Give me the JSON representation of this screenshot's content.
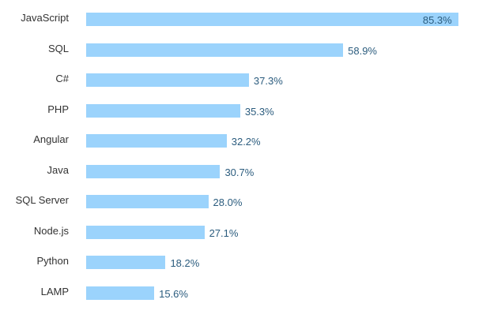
{
  "chart_data": {
    "type": "bar",
    "orientation": "horizontal",
    "title": "",
    "xlabel": "",
    "ylabel": "",
    "xlim": [
      0,
      100
    ],
    "grid": false,
    "categories": [
      "JavaScript",
      "SQL",
      "C#",
      "PHP",
      "Angular",
      "Java",
      "SQL Server",
      "Node.js",
      "Python",
      "LAMP"
    ],
    "values": [
      85.3,
      58.9,
      37.3,
      35.3,
      32.2,
      30.7,
      28.0,
      27.1,
      18.2,
      15.6
    ],
    "labels": [
      "85.3%",
      "58.9%",
      "37.3%",
      "35.3%",
      "32.2%",
      "30.7%",
      "28.0%",
      "27.1%",
      "18.2%",
      "15.6%"
    ],
    "bar_color": "#9bd3fc",
    "label_color": "#2b5c7e"
  }
}
